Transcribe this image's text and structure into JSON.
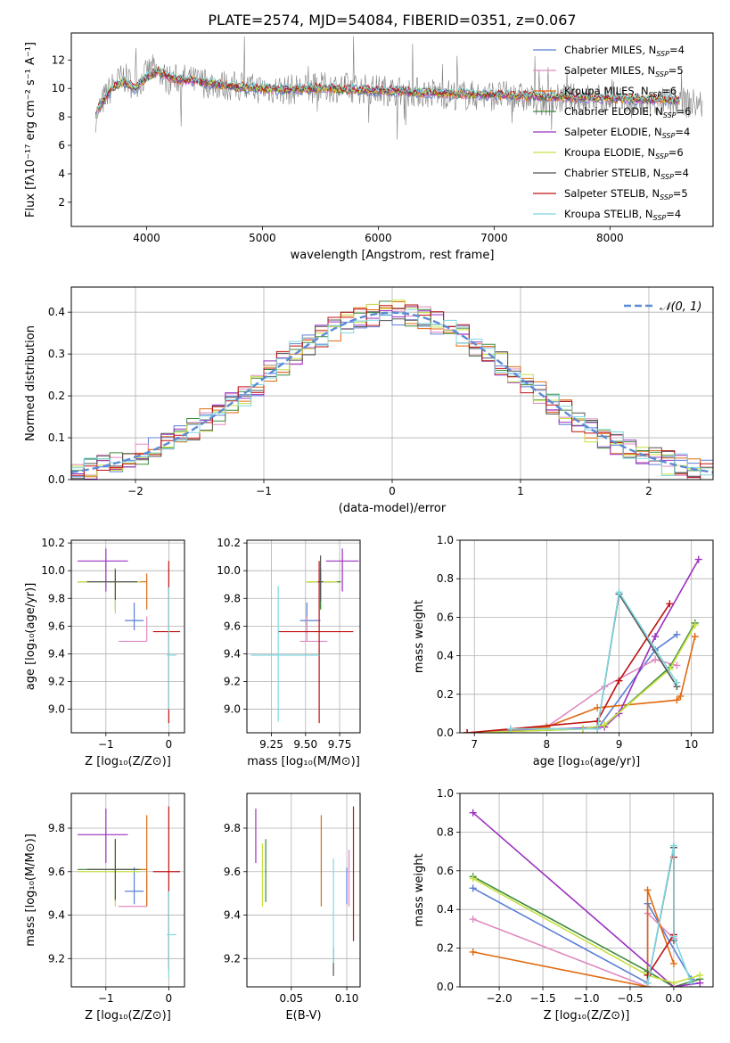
{
  "figure_title": "PLATE=2574, MJD=54084, FIBERID=0351, z=0.067",
  "models": [
    {
      "name": "Chabrier MILES",
      "nssp": "4",
      "color": "#5b7fd6"
    },
    {
      "name": "Salpeter MILES",
      "nssp": "5",
      "color": "#e08bc0"
    },
    {
      "name": "Kroupa MILES",
      "nssp": "6",
      "color": "#e06a10"
    },
    {
      "name": "Chabrier ELODIE",
      "nssp": "6",
      "color": "#3d8a3d"
    },
    {
      "name": "Salpeter ELODIE",
      "nssp": "4",
      "color": "#9b30c0"
    },
    {
      "name": "Kroupa ELODIE",
      "nssp": "6",
      "color": "#c8e040"
    },
    {
      "name": "Chabrier STELIB",
      "nssp": "4",
      "color": "#555555"
    },
    {
      "name": "Salpeter STELIB",
      "nssp": "5",
      "color": "#c01010"
    },
    {
      "name": "Kroupa STELIB",
      "nssp": "4",
      "color": "#7fd8e0"
    }
  ],
  "chart_data": [
    {
      "id": "spectrum",
      "type": "line",
      "xlabel": "wavelength [Angstrom, rest frame]",
      "ylabel": "Flux [fλ10⁻¹⁷ erg cm⁻² s⁻¹ A⁻¹]",
      "xlim": [
        3350,
        8890
      ],
      "ylim": [
        0.3,
        13.9
      ],
      "xticks": [
        4000,
        5000,
        6000,
        7000,
        8000
      ],
      "yticks": [
        2,
        4,
        6,
        8,
        10,
        12
      ],
      "legend_loc": "right",
      "data_series": {
        "name": "",
        "color": "#808080",
        "x": [
          3560,
          3640,
          3720,
          3800,
          3880,
          3960,
          4040,
          4120,
          4200,
          4300,
          4400,
          4500,
          4600,
          4700,
          4800,
          4900,
          5000,
          5200,
          5400,
          5600,
          5800,
          6000,
          6200,
          6400,
          6600,
          6800,
          7000,
          7200,
          7400,
          7600,
          7800,
          8000,
          8200,
          8400,
          8600,
          8800
        ],
        "y": [
          8.0,
          9.4,
          10.3,
          10.8,
          10.3,
          10.6,
          11.4,
          10.9,
          10.6,
          10.7,
          10.5,
          10.4,
          10.3,
          10.2,
          10.1,
          10.0,
          10.0,
          9.9,
          10.0,
          10.1,
          10.0,
          9.9,
          9.8,
          9.7,
          9.6,
          9.5,
          9.5,
          9.4,
          9.1,
          9.3,
          9.3,
          9.2,
          8.8,
          9.0,
          9.0,
          8.9
        ]
      },
      "model_curve": {
        "x": [
          3560,
          3600,
          3700,
          3800,
          3900,
          4000,
          4100,
          4200,
          4300,
          4400,
          4500,
          4600,
          4700,
          4800,
          5000,
          5200,
          5400,
          5600,
          5800,
          6000,
          6200,
          6400,
          6600,
          6800,
          7000,
          7200,
          7400,
          7600,
          7800,
          8000,
          8200,
          8400,
          8600
        ],
        "y": [
          8.0,
          8.8,
          10.0,
          10.5,
          10.0,
          10.8,
          11.2,
          10.8,
          10.6,
          10.6,
          10.4,
          10.3,
          10.2,
          10.1,
          10.0,
          9.9,
          10.0,
          10.0,
          9.9,
          9.85,
          9.8,
          9.7,
          9.65,
          9.6,
          9.55,
          9.5,
          9.45,
          9.4,
          9.35,
          9.3,
          9.25,
          9.2,
          9.2
        ]
      }
    },
    {
      "id": "residuals",
      "type": "histogram",
      "xlabel": "(data-model)/error",
      "ylabel": "Normed distribution",
      "xlim": [
        -2.5,
        2.5
      ],
      "ylim": [
        0,
        0.46
      ],
      "xticks": [
        -2,
        -1,
        0,
        1,
        2
      ],
      "yticks": [
        0.0,
        0.1,
        0.2,
        0.3,
        0.4
      ],
      "legend_loc": "top-right",
      "reference": {
        "label": "𝒩(0, 1)",
        "mean": 0,
        "sigma": 1,
        "color": "#5b8bd6"
      },
      "bins": {
        "start": -2.5,
        "width": 0.1,
        "count": 50
      }
    },
    {
      "id": "age_vs_Z",
      "type": "errorbar",
      "xlabel": "Z [log₁₀(Z/Z⊙)]",
      "ylabel": "age  [log₁₀(age/yr)]",
      "xlim": [
        -1.55,
        0.25
      ],
      "ylim": [
        8.83,
        10.22
      ],
      "xticks": [
        -1,
        0
      ],
      "yticks": [
        9.0,
        9.2,
        9.4,
        9.6,
        9.8,
        10.0,
        10.2
      ],
      "points": [
        {
          "x": -0.55,
          "y": 9.64,
          "xe": [
            0.15,
            0.15
          ],
          "ye": [
            0.07,
            0.13
          ]
        },
        {
          "x": -0.35,
          "y": 9.49,
          "xe": [
            0.45,
            0.0
          ],
          "ye": [
            0.0,
            0.18
          ]
        },
        {
          "x": -0.35,
          "y": 9.92,
          "xe": [
            0.15,
            0.0
          ],
          "ye": [
            0.2,
            0.06
          ]
        },
        {
          "x": -0.85,
          "y": 9.92,
          "xe": [
            0.6,
            0.4
          ],
          "ye": [
            0.2,
            0.1
          ]
        },
        {
          "x": -1.0,
          "y": 10.07,
          "xe": [
            0.45,
            0.35
          ],
          "ye": [
            0.22,
            0.09
          ]
        },
        {
          "x": -0.85,
          "y": 9.92,
          "xe": [
            0.6,
            0.4
          ],
          "ye": [
            0.23,
            0.1
          ]
        },
        {
          "x": -0.85,
          "y": 9.92,
          "xe": [
            0.45,
            0.35
          ],
          "ye": [
            0.13,
            0.09
          ]
        },
        {
          "x": 0.0,
          "y": 9.56,
          "xe": [
            0.25,
            0.18
          ],
          "ye": [
            0.66,
            0.51
          ]
        },
        {
          "x": 0.0,
          "y": 9.39,
          "xe": [
            0.03,
            0.12
          ],
          "ye": [
            0.39,
            0.49
          ]
        }
      ]
    },
    {
      "id": "age_vs_mass",
      "type": "errorbar",
      "xlabel": "mass [log₁₀(M/M⊙)]",
      "ylabel": "",
      "xlim": [
        9.07,
        9.9
      ],
      "ylim": [
        8.83,
        10.22
      ],
      "xticks": [
        9.25,
        9.5,
        9.75
      ],
      "yticks": [
        9.0,
        9.2,
        9.4,
        9.6,
        9.8,
        10.0,
        10.2
      ],
      "points": [
        {
          "x": 9.51,
          "y": 9.64,
          "xe": [
            0.05,
            0.1
          ],
          "ye": [
            0.07,
            0.13
          ]
        },
        {
          "x": 9.51,
          "y": 9.49,
          "xe": [
            0.05,
            0.15
          ],
          "ye": [
            0.0,
            0.18
          ]
        },
        {
          "x": 9.61,
          "y": 9.92,
          "xe": [
            0.1,
            0.15
          ],
          "ye": [
            0.2,
            0.06
          ]
        },
        {
          "x": 9.61,
          "y": 9.92,
          "xe": [
            0.1,
            0.15
          ],
          "ye": [
            0.2,
            0.1
          ]
        },
        {
          "x": 9.77,
          "y": 10.07,
          "xe": [
            0.12,
            0.12
          ],
          "ye": [
            0.22,
            0.09
          ]
        },
        {
          "x": 9.6,
          "y": 9.92,
          "xe": [
            0.1,
            0.13
          ],
          "ye": [
            0.2,
            0.1
          ]
        },
        {
          "x": 9.61,
          "y": 9.92,
          "xe": [
            0.02,
            0.02
          ],
          "ye": [
            0.14,
            0.19
          ]
        },
        {
          "x": 9.6,
          "y": 9.56,
          "xe": [
            0.3,
            0.25
          ],
          "ye": [
            0.66,
            0.51
          ]
        },
        {
          "x": 9.3,
          "y": 9.39,
          "xe": [
            0.2,
            0.3
          ],
          "ye": [
            0.48,
            0.5
          ]
        }
      ]
    },
    {
      "id": "weight_vs_age",
      "type": "line",
      "xlabel": "age  [log₁₀(age/yr)]",
      "ylabel": "mass weight",
      "xlim": [
        6.8,
        10.3
      ],
      "ylim": [
        0,
        1.0
      ],
      "xticks": [
        7,
        8,
        9,
        10
      ],
      "yticks": [
        0.0,
        0.2,
        0.4,
        0.6,
        0.8,
        1.0
      ],
      "series": [
        {
          "x": [
            7.5,
            8.7,
            9.5,
            9.8
          ],
          "y": [
            0.02,
            0.02,
            0.43,
            0.51
          ]
        },
        {
          "x": [
            6.9,
            8.0,
            8.8,
            9.5,
            9.8
          ],
          "y": [
            0.0,
            0.03,
            0.24,
            0.38,
            0.35
          ]
        },
        {
          "x": [
            6.9,
            7.5,
            8.0,
            8.7,
            9.8,
            9.85,
            10.05
          ],
          "y": [
            0.0,
            0.01,
            0.03,
            0.13,
            0.17,
            0.19,
            0.5
          ]
        },
        {
          "x": [
            6.9,
            8.5,
            8.8,
            9.7,
            10.05
          ],
          "y": [
            0.0,
            0.02,
            0.04,
            0.34,
            0.57
          ]
        },
        {
          "x": [
            6.9,
            8.8,
            9.0,
            9.5,
            10.1
          ],
          "y": [
            0.0,
            0.03,
            0.1,
            0.5,
            0.9
          ]
        },
        {
          "x": [
            6.9,
            8.5,
            8.8,
            9.7,
            10.05
          ],
          "y": [
            0.0,
            0.02,
            0.04,
            0.33,
            0.56
          ]
        },
        {
          "x": [
            7.5,
            8.7,
            9.0,
            9.8
          ],
          "y": [
            0.02,
            0.02,
            0.72,
            0.24
          ]
        },
        {
          "x": [
            6.9,
            8.7,
            9.0,
            9.7
          ],
          "y": [
            0.0,
            0.06,
            0.27,
            0.67
          ]
        },
        {
          "x": [
            7.5,
            8.7,
            9.0,
            9.8
          ],
          "y": [
            0.02,
            0.02,
            0.73,
            0.26
          ]
        }
      ]
    },
    {
      "id": "mass_vs_Z",
      "type": "errorbar",
      "xlabel": "Z [log₁₀(Z/Z⊙)]",
      "ylabel": "mass [log₁₀(M/M⊙)]",
      "xlim": [
        -1.55,
        0.25
      ],
      "ylim": [
        9.07,
        9.96
      ],
      "xticks": [
        -1,
        0
      ],
      "yticks": [
        9.2,
        9.4,
        9.6,
        9.8
      ],
      "points": [
        {
          "x": -0.55,
          "y": 9.51,
          "xe": [
            0.15,
            0.15
          ],
          "ye": [
            0.06,
            0.11
          ]
        },
        {
          "x": -0.35,
          "y": 9.44,
          "xe": [
            0.45,
            0.0
          ],
          "ye": [
            0.0,
            0.15
          ]
        },
        {
          "x": -0.35,
          "y": 9.61,
          "xe": [
            0.15,
            0.0
          ],
          "ye": [
            0.17,
            0.25
          ]
        },
        {
          "x": -0.85,
          "y": 9.61,
          "xe": [
            0.6,
            0.4
          ],
          "ye": [
            0.15,
            0.14
          ]
        },
        {
          "x": -1.0,
          "y": 9.77,
          "xe": [
            0.45,
            0.35
          ],
          "ye": [
            0.13,
            0.12
          ]
        },
        {
          "x": -0.85,
          "y": 9.6,
          "xe": [
            0.6,
            0.4
          ],
          "ye": [
            0.16,
            0.13
          ]
        },
        {
          "x": -0.85,
          "y": 9.61,
          "xe": [
            0.45,
            0.35
          ],
          "ye": [
            0.14,
            0.14
          ]
        },
        {
          "x": 0.0,
          "y": 9.6,
          "xe": [
            0.25,
            0.18
          ],
          "ye": [
            0.45,
            0.3
          ]
        },
        {
          "x": 0.0,
          "y": 9.31,
          "xe": [
            0.03,
            0.12
          ],
          "ye": [
            0.2,
            0.2
          ]
        }
      ]
    },
    {
      "id": "mass_vs_ebv",
      "type": "errorbar",
      "xlabel": "E(B-V)",
      "ylabel": "",
      "xlim": [
        0.01,
        0.112
      ],
      "ylim": [
        9.07,
        9.96
      ],
      "xticks": [
        0.05,
        0.1
      ],
      "yticks": [
        9.2,
        9.4,
        9.6,
        9.8
      ],
      "points": [
        {
          "x": 0.1,
          "y": 9.51,
          "xe": [
            0,
            0
          ],
          "ye": [
            0.06,
            0.11
          ]
        },
        {
          "x": 0.102,
          "y": 9.44,
          "xe": [
            0,
            0
          ],
          "ye": [
            0.0,
            0.26
          ]
        },
        {
          "x": 0.077,
          "y": 9.61,
          "xe": [
            0,
            0
          ],
          "ye": [
            0.17,
            0.25
          ]
        },
        {
          "x": 0.027,
          "y": 9.61,
          "xe": [
            0,
            0
          ],
          "ye": [
            0.15,
            0.14
          ]
        },
        {
          "x": 0.018,
          "y": 9.77,
          "xe": [
            0,
            0
          ],
          "ye": [
            0.13,
            0.12
          ]
        },
        {
          "x": 0.024,
          "y": 9.6,
          "xe": [
            0,
            0
          ],
          "ye": [
            0.16,
            0.13
          ]
        },
        {
          "x": 0.088,
          "y": 9.2,
          "xe": [
            0,
            0
          ],
          "ye": [
            0.08,
            0.05
          ]
        },
        {
          "x": 0.106,
          "y": 9.56,
          "xe": [
            0,
            0
          ],
          "ye": [
            0.28,
            0.34
          ]
        },
        {
          "x": 0.088,
          "y": 9.4,
          "xe": [
            0,
            0
          ],
          "ye": [
            0.22,
            0.26
          ]
        }
      ]
    },
    {
      "id": "weight_vs_Z",
      "type": "line",
      "xlabel": "Z [log₁₀(Z/Z⊙)]",
      "ylabel": "mass weight",
      "xlim": [
        -2.45,
        0.45
      ],
      "ylim": [
        0,
        1.0
      ],
      "xticks": [
        -2.0,
        -1.5,
        -1.0,
        -0.5,
        0.0
      ],
      "yticks": [
        0.0,
        0.2,
        0.4,
        0.6,
        0.8,
        1.0
      ],
      "series": [
        {
          "x": [
            -2.3,
            -0.3,
            -0.3,
            0.2
          ],
          "y": [
            0.51,
            0.02,
            0.43,
            0.04
          ]
        },
        {
          "x": [
            -2.3,
            -0.3,
            -0.3,
            0.0
          ],
          "y": [
            0.35,
            0.0,
            0.38,
            0.25
          ]
        },
        {
          "x": [
            -2.3,
            -0.3,
            -0.3,
            0.0
          ],
          "y": [
            0.18,
            0.0,
            0.5,
            0.12
          ]
        },
        {
          "x": [
            -2.3,
            -0.3,
            0.0,
            0.3
          ],
          "y": [
            0.57,
            0.08,
            0.0,
            0.04
          ]
        },
        {
          "x": [
            -2.3,
            0.0,
            0.3
          ],
          "y": [
            0.9,
            0.0,
            0.02
          ]
        },
        {
          "x": [
            -2.3,
            -0.3,
            0.0,
            0.3
          ],
          "y": [
            0.56,
            0.06,
            0.02,
            0.06
          ]
        },
        {
          "x": [
            -0.3,
            0.0,
            0.0
          ],
          "y": [
            0.02,
            0.72,
            0.24
          ]
        },
        {
          "x": [
            -0.3,
            0.0,
            0.0
          ],
          "y": [
            0.06,
            0.27,
            0.67
          ]
        },
        {
          "x": [
            -0.3,
            0.0,
            0.0,
            0.2
          ],
          "y": [
            0.02,
            0.73,
            0.26,
            0.02
          ]
        }
      ]
    }
  ]
}
